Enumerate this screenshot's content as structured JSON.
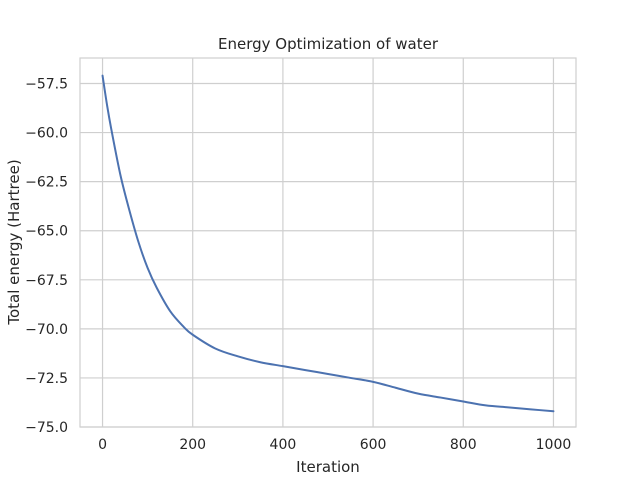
{
  "chart_data": {
    "type": "line",
    "title": "Energy Optimization of water",
    "xlabel": "Iteration",
    "ylabel": "Total energy (Hartree)",
    "xlim": [
      -50,
      1050
    ],
    "ylim": [
      -75.0,
      -56.2
    ],
    "xticks": [
      0,
      200,
      400,
      600,
      800,
      1000
    ],
    "xtick_labels": [
      "0",
      "200",
      "400",
      "600",
      "800",
      "1000"
    ],
    "yticks": [
      -57.5,
      -60.0,
      -62.5,
      -65.0,
      -67.5,
      -70.0,
      -72.5,
      -75.0
    ],
    "ytick_labels": [
      "−57.5",
      "−60.0",
      "−62.5",
      "−65.0",
      "−67.5",
      "−70.0",
      "−72.5",
      "−75.0"
    ],
    "grid": true,
    "series": [
      {
        "color": "#4c72b0",
        "x": [
          0,
          10,
          20,
          40,
          60,
          80,
          100,
          120,
          150,
          180,
          200,
          250,
          300,
          350,
          400,
          450,
          500,
          550,
          600,
          650,
          700,
          750,
          800,
          850,
          900,
          950,
          1000
        ],
        "y": [
          -57.1,
          -58.6,
          -59.9,
          -62.2,
          -64.0,
          -65.6,
          -66.9,
          -67.9,
          -69.1,
          -69.9,
          -70.3,
          -71.0,
          -71.4,
          -71.7,
          -71.9,
          -72.1,
          -72.3,
          -72.5,
          -72.7,
          -73.0,
          -73.3,
          -73.5,
          -73.7,
          -73.9,
          -74.0,
          -74.1,
          -74.2
        ]
      }
    ]
  }
}
